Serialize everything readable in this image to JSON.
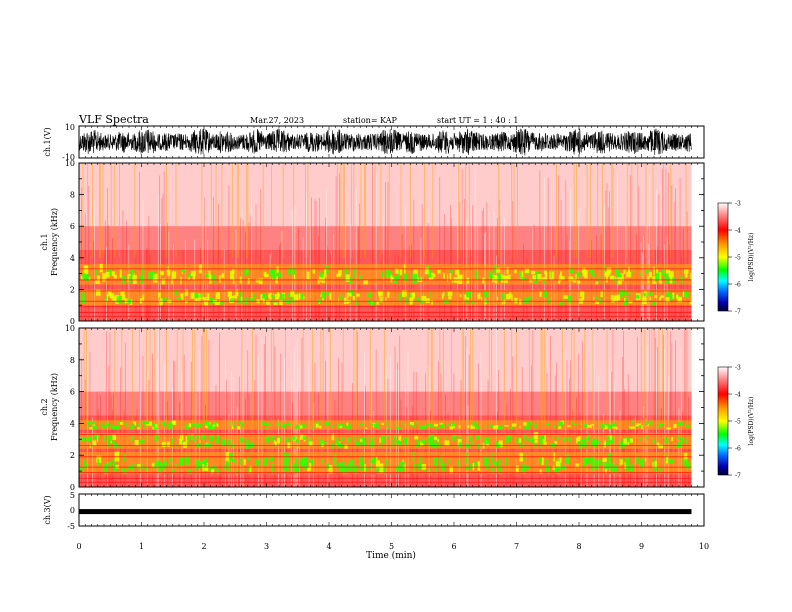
{
  "header": {
    "title": "VLF Spectra",
    "date": "Mar.27, 2023",
    "station": "station= KAP",
    "start": "start UT = 1 : 40 : 1"
  },
  "chart_data": [
    {
      "type": "line",
      "panel": "ch1-waveform",
      "ylabel": "ch.1(V)",
      "ylim": [
        -10,
        10
      ],
      "xlim": [
        0,
        10
      ],
      "note_color": "#000000"
    },
    {
      "type": "heatmap",
      "panel": "ch1-spectrogram",
      "ylabel": "ch.1 Frequency (kHz)",
      "ylim": [
        0,
        10
      ],
      "yticks": [
        "0",
        "2",
        "4",
        "6",
        "8",
        "10"
      ],
      "xlim": [
        0,
        10
      ],
      "colorbar": {
        "label": "log(PSD)(V²/Hz)",
        "ticks": [
          "-3",
          "-4",
          "-5",
          "-6",
          "-7"
        ],
        "range": [
          -7,
          -3
        ]
      },
      "bands_khz": [
        [
          1.0,
          2.0
        ],
        [
          2.3,
          3.6
        ]
      ]
    },
    {
      "type": "heatmap",
      "panel": "ch2-spectrogram",
      "ylabel": "ch.2 Frequency (kHz)",
      "ylim": [
        0,
        10
      ],
      "yticks": [
        "0",
        "2",
        "4",
        "6",
        "8",
        "10"
      ],
      "xlim": [
        0,
        10
      ],
      "colorbar": {
        "label": "log(PSD)(V²/Hz)",
        "ticks": [
          "-3",
          "-4",
          "-5",
          "-6",
          "-7"
        ],
        "range": [
          -7,
          -3
        ]
      },
      "bands_khz": [
        [
          0.8,
          2.2
        ],
        [
          2.4,
          3.4
        ],
        [
          3.6,
          4.2
        ]
      ]
    },
    {
      "type": "line",
      "panel": "ch3-waveform",
      "ylabel": "ch.3(V)",
      "ylim": [
        -5,
        5
      ],
      "xlim": [
        0,
        10
      ],
      "level": -0.5
    }
  ],
  "xaxis": {
    "label": "Time (min)",
    "ticks": [
      "0",
      "1",
      "2",
      "3",
      "4",
      "5",
      "6",
      "7",
      "8",
      "9",
      "10"
    ],
    "data_end": 9.8
  },
  "labels": {
    "ch1_volt": "ch.1(V)",
    "ch1_top": "10",
    "ch1_bottom": "-10",
    "ch1_freq_a": "ch.1",
    "ch1_freq_b": "Frequency (kHz)",
    "ch2_freq_a": "ch.2",
    "ch2_freq_b": "Frequency (kHz)",
    "ch3_volt": "ch.3(V)",
    "ch3_top": "5",
    "ch3_mid": "0",
    "ch3_bottom": "-5",
    "cbar_label": "log(PSD)(V²/Hz)"
  }
}
